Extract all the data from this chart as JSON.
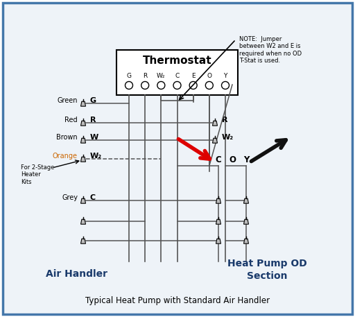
{
  "title": "Typical Heat Pump with Standard Air Handler",
  "bg_color": "#e8eef5",
  "border_color": "#4477aa",
  "thermostat_label": "Thermostat",
  "thermostat_terminals": [
    "G",
    "R",
    "W₂",
    "C",
    "E",
    "O",
    "Y"
  ],
  "air_handler_label": "Air Handler",
  "heat_pump_label": "Heat Pump OD\nSection",
  "note_text": "NOTE:  Jumper\nbetween W2 and E is\nrequired when no OD\nT-Stat is used.",
  "line_color": "#555555",
  "red_arrow_color": "#dd0000",
  "black_arrow_color": "#111111",
  "font_color": "#000000",
  "orange_label_color": "#cc6600",
  "label_fontsize": 7.0,
  "term_fontsize": 8.0,
  "section_fontsize": 9.5,
  "title_fontsize": 8.5
}
